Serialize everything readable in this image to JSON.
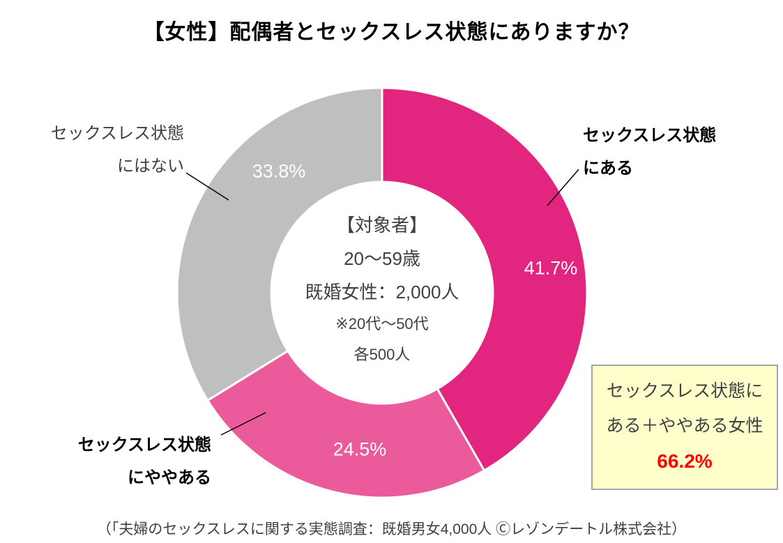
{
  "title": "【女性】配偶者とセックスレス状態にありますか？",
  "chart_data": {
    "type": "pie",
    "subtype": "donut",
    "title": "【女性】配偶者とセックスレス状態にありますか？",
    "start_angle_deg": 0,
    "direction": "clockwise",
    "inner_radius_ratio": 0.54,
    "separator_color": "#FFFFFF",
    "slices": [
      {
        "label": "セックスレス状態にある",
        "value": 41.7,
        "display": "41.7%",
        "color": "#E2257E"
      },
      {
        "label": "セックスレス状態にややある",
        "value": 24.5,
        "display": "24.5%",
        "color": "#EB5A9B"
      },
      {
        "label": "セックスレス状態にはない",
        "value": 33.8,
        "display": "33.8%",
        "color": "#BFBFBF"
      }
    ]
  },
  "callouts": {
    "has_state": {
      "line1": "セックスレス状態",
      "line2": "にある"
    },
    "no_state": {
      "line1": "セックスレス状態",
      "line2": "にはない"
    },
    "somewhat_state": {
      "line1": "セックスレス状態",
      "line2": "にややある"
    }
  },
  "center": {
    "line1": "【対象者】",
    "line2": "20～59歳",
    "line3": "既婚女性：2,000人",
    "line4": "※20代～50代",
    "line5": "各500人"
  },
  "summary_box": {
    "line1": "セックスレス状態に",
    "line2": "ある＋ややある女性",
    "value": "66.2%",
    "value_color": "#FF0000",
    "bg_color": "#FFFFCC",
    "border_color": "#A6A6A6"
  },
  "caption": "（「夫婦のセックスレスに関する実態調査：既婚男女4,000人 Ⓒレゾンデートル株式会社）"
}
